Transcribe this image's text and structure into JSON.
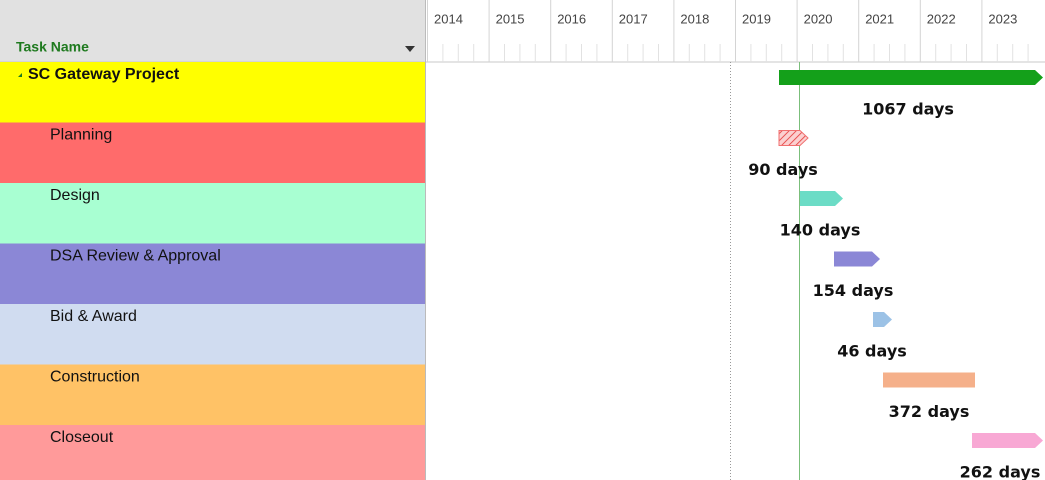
{
  "header": {
    "task_column": "Task Name",
    "years": [
      "2014",
      "2015",
      "2016",
      "2017",
      "2018",
      "2019",
      "2020",
      "2021",
      "2022",
      "2023"
    ]
  },
  "tasks": [
    {
      "name": "SC Gateway Project",
      "duration": "1067 days",
      "row_color": "#ffff00",
      "bar_color": "#14a01a",
      "summary": true
    },
    {
      "name": "Planning",
      "duration": "90 days",
      "row_color": "#ff6b6b",
      "bar_color": "#f07070",
      "hatched": true
    },
    {
      "name": "Design",
      "duration": "140 days",
      "row_color": "#a8ffd2",
      "bar_color": "#6cdcc6"
    },
    {
      "name": "DSA Review & Approval",
      "duration": "154 days",
      "row_color": "#8b87d6",
      "bar_color": "#8b87d6"
    },
    {
      "name": "Bid & Award",
      "duration": "46 days",
      "row_color": "#d0dcf0",
      "bar_color": "#9cc2e6"
    },
    {
      "name": "Construction",
      "duration": "372 days",
      "row_color": "#ffc266",
      "bar_color": "#f5b08a"
    },
    {
      "name": "Closeout",
      "duration": "262 days",
      "row_color": "#ff9a9a",
      "bar_color": "#f8a8d4"
    }
  ]
}
